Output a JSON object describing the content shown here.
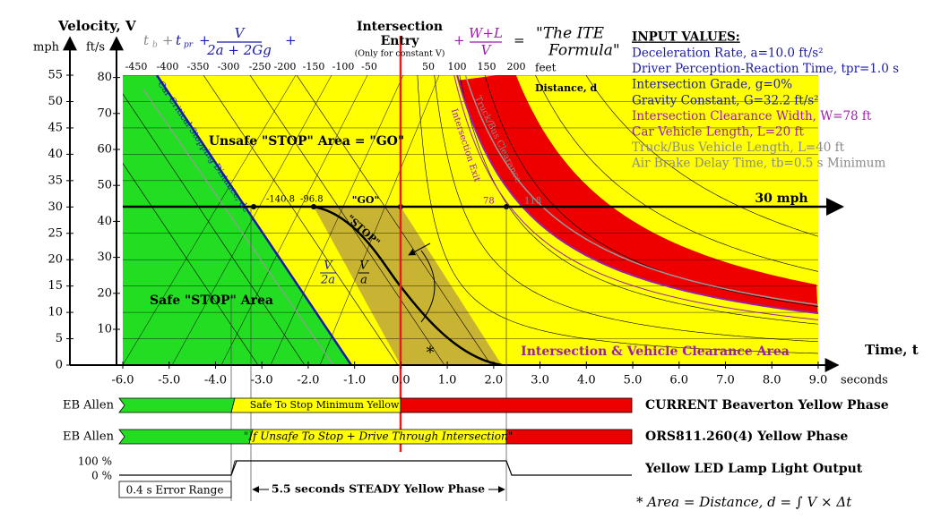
{
  "axes": {
    "velocity_title": "Velocity, V",
    "mph": "mph",
    "fts": "ft/s",
    "mph_ticks": [
      0,
      5,
      10,
      15,
      20,
      25,
      30,
      35,
      40,
      45,
      50,
      55
    ],
    "fts_ticks": [
      10,
      20,
      30,
      40,
      50,
      60,
      70,
      80
    ],
    "feet_ticks": [
      -450,
      -400,
      -350,
      -300,
      -250,
      -200,
      -150,
      -100,
      -50,
      50,
      100,
      150,
      200
    ],
    "time_ticks": [
      "-6.0",
      "-5.0",
      "-4.0",
      "-3.0",
      "-2.0",
      "-1.0",
      "0.0",
      "1.0",
      "2.0",
      "3.0",
      "4.0",
      "5.0",
      "6.0",
      "7.0",
      "8.0",
      "9.0"
    ],
    "time_title": "Time, t",
    "seconds": "seconds",
    "feet": "feet",
    "distance": "Distance, d"
  },
  "formula": {
    "t": "t",
    "b": "b",
    "pr": "pr",
    "plus": "+",
    "num": "V",
    "den": "2a + 2Gg",
    "wl_num": "W+L",
    "wl_den": "V",
    "eq": "="
  },
  "intersection": {
    "title": "Intersection",
    "entry": "Entry",
    "note": "(Only for constant V)"
  },
  "ite": [
    "\"The ITE",
    "Formula\""
  ],
  "inputs": {
    "title": "INPUT VALUES:",
    "items": [
      {
        "text": "Deceleration Rate, a=10.0 ft/s²",
        "color": "#1a1aa8"
      },
      {
        "text": "Driver Perception-Reaction Time, tpr=1.0 s",
        "color": "#1a1aa8"
      },
      {
        "text": "Intersection Grade, g=0%",
        "color": "#1a1aa8"
      },
      {
        "text": "Gravity Constant, G=32.2 ft/s²",
        "color": "#1a1aa8"
      },
      {
        "text": "Intersection Clearance Width, W=78 ft",
        "color": "#9b1fa8"
      },
      {
        "text": "Car Vehicle Length, L=20 ft",
        "color": "#9b1fa8"
      },
      {
        "text": "Truck/Bus Vehicle Length, L=40 ft",
        "color": "#8a8a8a"
      },
      {
        "text": "Air Brake Delay Time, tb=0.5 s Minimum",
        "color": "#8a8a8a"
      }
    ]
  },
  "regions": {
    "unsafe": "Unsafe \"STOP\" Area = \"GO\"",
    "safe": "Safe \"STOP\" Area",
    "clearance": "Intersection & Vehicle Clearance Area",
    "speed": "30 mph"
  },
  "annotations": {
    "go": "\"GO\"",
    "stop": "\"STOP\"",
    "d1": "-140.8",
    "d2": "-96.8",
    "d3": "78",
    "d4": "118",
    "critical": "Car Critical Stopping Distance, dc",
    "exit": "Intersection Exit",
    "truck": "Truck/Bus Clearance",
    "v2a_num": "V",
    "v2a_den": "2a",
    "va_num": "V",
    "va_den": "a",
    "star": "*"
  },
  "phases": [
    {
      "label": "EB Allen",
      "text": "Safe To Stop Minimum Yellow",
      "name": "CURRENT Beaverton Yellow Phase"
    },
    {
      "label": "EB Allen",
      "text": "\"If Unsafe To Stop + Drive Through Intersection\"",
      "name": "ORS811.260(4) Yellow Phase"
    }
  ],
  "lamp": {
    "high": "100 %",
    "low": "0 %",
    "name": "Yellow LED Lamp Light Output",
    "error": "0.4 s Error Range",
    "steady": "5.5 seconds STEADY Yellow Phase"
  },
  "area_formula": "* Area = Distance, d = ∫ V × Δt"
}
